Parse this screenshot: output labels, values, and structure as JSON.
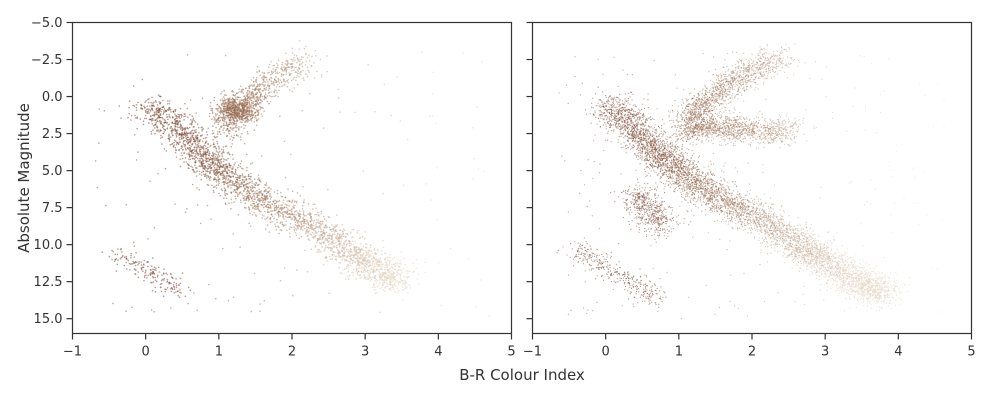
{
  "figure": {
    "xlabel": "B-R Colour Index",
    "ylabel": "Absolute Magnitude"
  },
  "colors": {
    "axis": "#333333",
    "point_dark": "#7a4630",
    "point_mid": "#a57e62",
    "point_light": "#e6d6c2",
    "background": "#ffffff"
  },
  "chart_data": [
    {
      "type": "scatter",
      "panel": "left",
      "xlim": [
        -1,
        5
      ],
      "ylim": [
        16,
        -5
      ],
      "y_inverted": true,
      "xticks": [
        "−1",
        "0",
        "1",
        "2",
        "3",
        "4",
        "5"
      ],
      "xtick_values": [
        -1,
        0,
        1,
        2,
        3,
        4,
        5
      ],
      "yticks": [
        "−5.0",
        "−2.5",
        "0.0",
        "2.5",
        "5.0",
        "7.5",
        "10.0",
        "12.5",
        "15.0"
      ],
      "ytick_values": [
        -5,
        -2.5,
        0,
        2.5,
        5,
        7.5,
        10,
        12.5,
        15
      ],
      "grid": false,
      "ylabel": "Absolute Magnitude",
      "density": "sparse",
      "regions": [
        {
          "feature": "main sequence",
          "points": [
            [
              0.0,
              0.5
            ],
            [
              0.4,
              2.0
            ],
            [
              0.7,
              3.5
            ],
            [
              1.0,
              5.0
            ],
            [
              1.4,
              6.5
            ],
            [
              2.0,
              8.0
            ],
            [
              2.6,
              9.8
            ],
            [
              3.0,
              11.2
            ],
            [
              3.5,
              12.6
            ]
          ],
          "color_t": [
            0.0,
            0.05,
            0.1,
            0.2,
            0.35,
            0.55,
            0.75,
            0.9,
            1.0
          ]
        },
        {
          "feature": "red giant branch",
          "points": [
            [
              1.1,
              2.5
            ],
            [
              1.2,
              1.2
            ],
            [
              1.4,
              0.3
            ],
            [
              1.6,
              -0.6
            ],
            [
              1.9,
              -1.6
            ],
            [
              2.2,
              -2.6
            ]
          ],
          "color_t": [
            0.3,
            0.35,
            0.4,
            0.5,
            0.6,
            0.7
          ]
        },
        {
          "feature": "red clump",
          "points": [
            [
              1.1,
              0.8
            ],
            [
              1.25,
              0.9
            ],
            [
              1.4,
              1.0
            ]
          ],
          "color_t": [
            0.3,
            0.35,
            0.4
          ]
        },
        {
          "feature": "white dwarfs",
          "points": [
            [
              -0.4,
              10.5
            ],
            [
              -0.1,
              11.5
            ],
            [
              0.2,
              12.3
            ],
            [
              0.5,
              13.2
            ]
          ],
          "color_t": [
            0.0,
            0.0,
            0.0,
            0.0
          ]
        }
      ]
    },
    {
      "type": "scatter",
      "panel": "right",
      "xlim": [
        -1,
        5
      ],
      "ylim": [
        16,
        -5
      ],
      "y_inverted": true,
      "xticks": [
        "−1",
        "0",
        "1",
        "2",
        "3",
        "4",
        "5"
      ],
      "xtick_values": [
        -1,
        0,
        1,
        2,
        3,
        4,
        5
      ],
      "yticks": [],
      "grid": false,
      "density": "dense",
      "regions": [
        {
          "feature": "main sequence",
          "points": [
            [
              0.0,
              0.5
            ],
            [
              0.4,
              2.0
            ],
            [
              0.7,
              3.8
            ],
            [
              1.0,
              5.0
            ],
            [
              1.4,
              6.5
            ],
            [
              2.0,
              8.0
            ],
            [
              2.6,
              9.8
            ],
            [
              3.0,
              11.2
            ],
            [
              3.5,
              12.6
            ],
            [
              3.8,
              13.3
            ]
          ],
          "color_t": [
            0.0,
            0.05,
            0.1,
            0.2,
            0.35,
            0.55,
            0.75,
            0.9,
            1.0,
            1.0
          ]
        },
        {
          "feature": "red giant branch",
          "points": [
            [
              1.1,
              2.5
            ],
            [
              1.2,
              1.2
            ],
            [
              1.4,
              0.3
            ],
            [
              1.7,
              -0.9
            ],
            [
              2.0,
              -1.8
            ],
            [
              2.4,
              -2.7
            ]
          ],
          "color_t": [
            0.3,
            0.35,
            0.4,
            0.5,
            0.6,
            0.7
          ]
        },
        {
          "feature": "red clump",
          "points": [
            [
              1.2,
              2.0
            ],
            [
              1.6,
              2.1
            ],
            [
              2.0,
              2.3
            ],
            [
              2.5,
              2.4
            ]
          ],
          "color_t": [
            0.35,
            0.45,
            0.55,
            0.65
          ]
        },
        {
          "feature": "subdwarf branch",
          "points": [
            [
              0.4,
              6.5
            ],
            [
              0.6,
              7.8
            ],
            [
              0.8,
              8.8
            ]
          ],
          "color_t": [
            0.05,
            0.05,
            0.1
          ]
        },
        {
          "feature": "white dwarfs",
          "points": [
            [
              -0.4,
              10.3
            ],
            [
              -0.2,
              11.0
            ],
            [
              0.1,
              11.8
            ],
            [
              0.4,
              12.7
            ],
            [
              0.7,
              13.7
            ]
          ],
          "color_t": [
            0.0,
            0.0,
            0.0,
            0.0,
            0.0
          ]
        }
      ]
    }
  ]
}
